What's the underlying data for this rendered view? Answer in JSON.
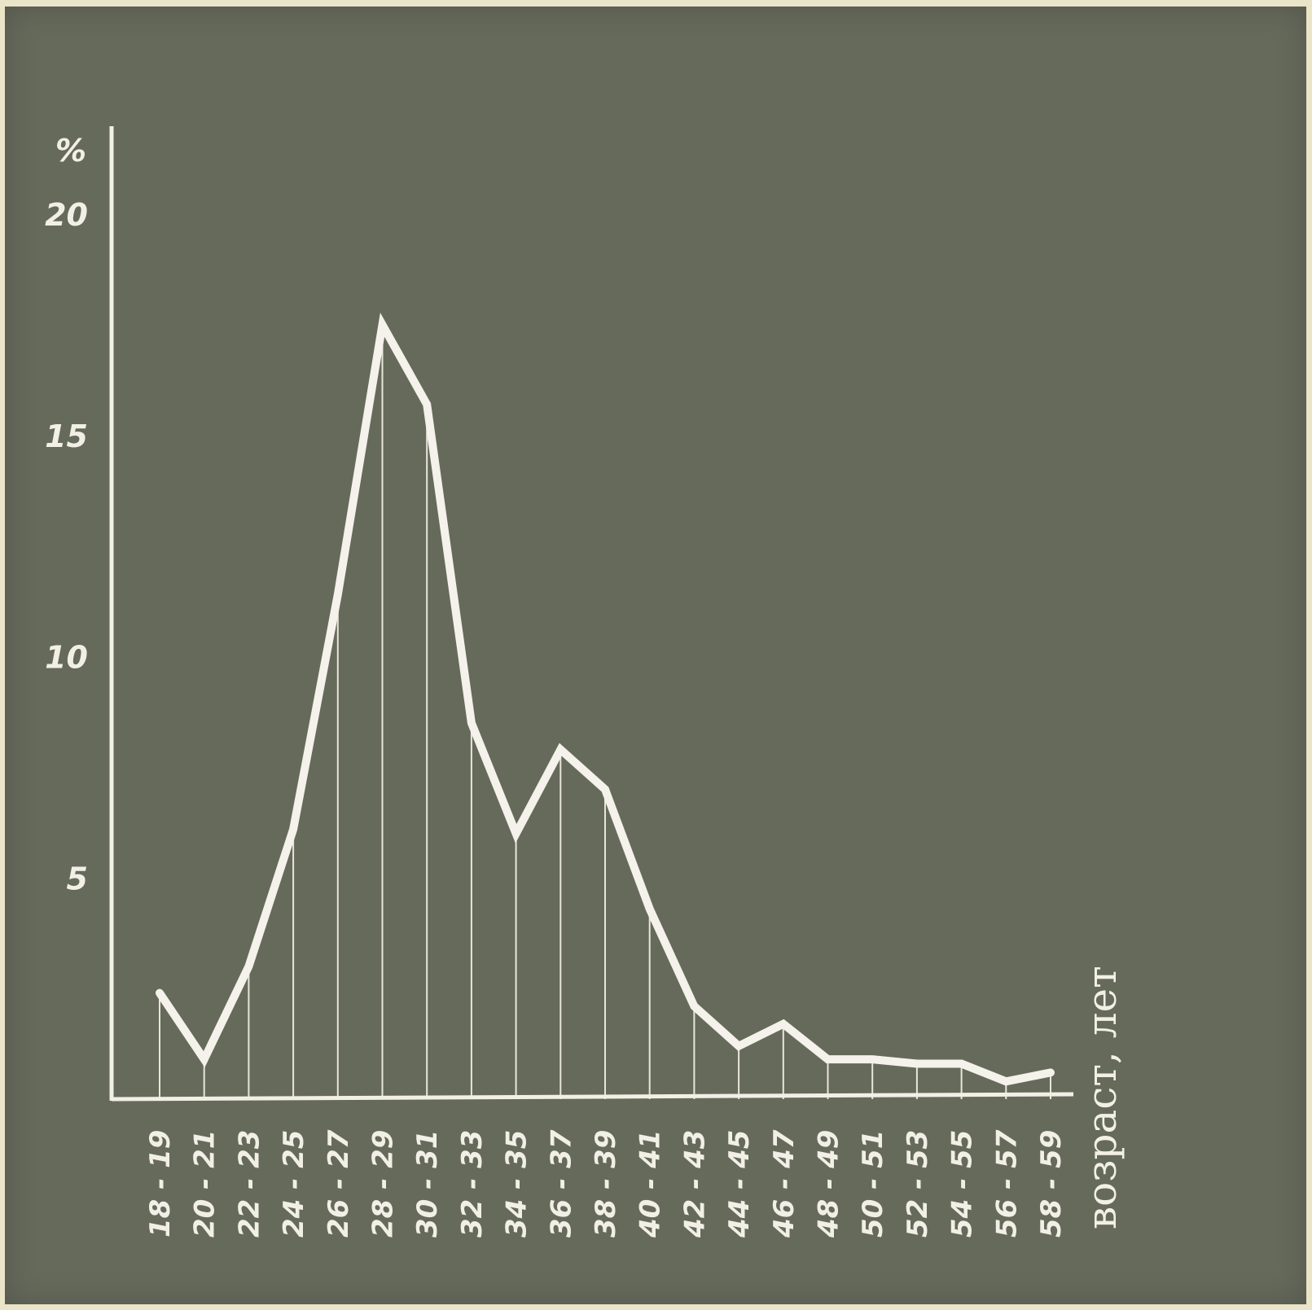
{
  "chart_data": {
    "type": "line",
    "ylabel": "%",
    "xlabel": "возраст, лет",
    "ylim": [
      0,
      20
    ],
    "yticks": [
      "5",
      "10",
      "15",
      "20"
    ],
    "categories": [
      "18 - 19",
      "20 - 21",
      "22 - 23",
      "24 - 25",
      "26 - 27",
      "28 - 29",
      "30 - 31",
      "32 - 33",
      "34 - 35",
      "36 - 37",
      "38 - 39",
      "40 - 41",
      "42 - 43",
      "44 - 45",
      "46 - 47",
      "48 - 49",
      "50 - 51",
      "52 - 53",
      "54 - 55",
      "56 - 57",
      "58 - 59"
    ],
    "series": [
      {
        "values": [
          2.4,
          0.9,
          3.0,
          6.1,
          11.4,
          17.5,
          15.7,
          8.5,
          6.0,
          7.9,
          7.0,
          4.3,
          2.1,
          1.2,
          1.7,
          0.9,
          0.9,
          0.8,
          0.8,
          0.4,
          0.6
        ]
      }
    ],
    "grid": false,
    "legend": "none"
  },
  "colors": {
    "board": "#666a5b",
    "line": "#f4f2ea"
  }
}
